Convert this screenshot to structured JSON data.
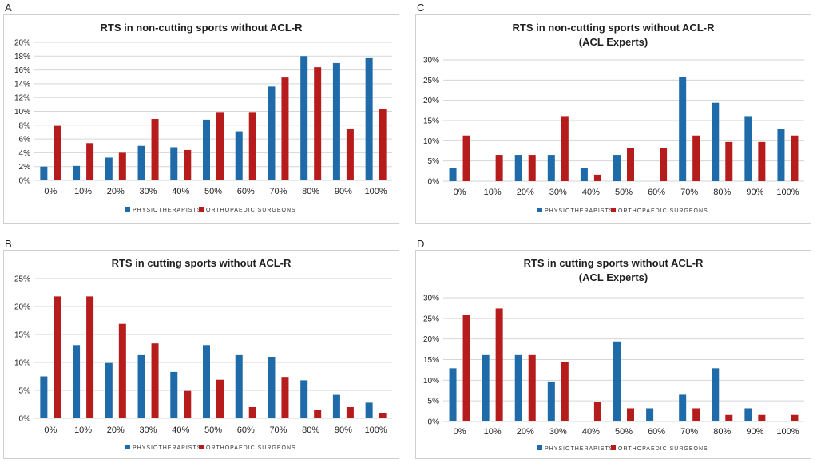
{
  "colors": {
    "physio": "#1f6aa8",
    "ortho": "#b71c1c",
    "grid": "#d6d6d6"
  },
  "chart_data": [
    {
      "letter": "A",
      "type": "bar",
      "title": [
        "RTS in non-cutting sports without ACL-R"
      ],
      "categories": [
        "0%",
        "10%",
        "20%",
        "30%",
        "40%",
        "50%",
        "60%",
        "70%",
        "80%",
        "90%",
        "100%"
      ],
      "ylim": [
        0,
        20
      ],
      "yticks": [
        0,
        2,
        4,
        6,
        8,
        10,
        12,
        14,
        16,
        18,
        20
      ],
      "ytick_labels": [
        "0%",
        "2%",
        "4%",
        "6%",
        "8%",
        "10%",
        "12%",
        "14%",
        "16%",
        "18%",
        "20%"
      ],
      "series": [
        {
          "name": "PHYSIOTHERAPISTS",
          "values": [
            2,
            2.1,
            3.3,
            5,
            4.8,
            8.8,
            7.1,
            13.6,
            18,
            17,
            17.7
          ]
        },
        {
          "name": "ORTHOPAEDIC SURGEONS",
          "values": [
            7.9,
            5.4,
            4,
            8.9,
            4.4,
            9.9,
            9.9,
            14.9,
            16.4,
            7.4,
            10.4
          ]
        }
      ],
      "legend": "bottom-center"
    },
    {
      "letter": "B",
      "type": "bar",
      "title": [
        "RTS in cutting sports without ACL-R"
      ],
      "categories": [
        "0%",
        "10%",
        "20%",
        "30%",
        "40%",
        "50%",
        "60%",
        "70%",
        "80%",
        "90%",
        "100%"
      ],
      "ylim": [
        0,
        25
      ],
      "yticks": [
        0,
        5,
        10,
        15,
        20,
        25
      ],
      "ytick_labels": [
        "0%",
        "5%",
        "10%",
        "15%",
        "20%",
        "25%"
      ],
      "series": [
        {
          "name": "PHYSIOTHERAPISTS",
          "values": [
            7.5,
            13.1,
            9.9,
            11.3,
            8.3,
            13.1,
            11.3,
            11,
            6.8,
            4.2,
            2.8
          ]
        },
        {
          "name": "ORTHOPAEDIC SURGEONS",
          "values": [
            21.8,
            21.8,
            16.9,
            13.4,
            4.9,
            6.9,
            2,
            7.4,
            1.5,
            2,
            1
          ]
        }
      ],
      "legend": "bottom-center"
    },
    {
      "letter": "C",
      "type": "bar",
      "title": [
        "RTS in non-cutting sports without ACL-R",
        "(ACL Experts)"
      ],
      "categories": [
        "0%",
        "10%",
        "20%",
        "30%",
        "40%",
        "50%",
        "60%",
        "70%",
        "80%",
        "90%",
        "100%"
      ],
      "ylim": [
        0,
        30
      ],
      "yticks": [
        0,
        5,
        10,
        15,
        20,
        25,
        30
      ],
      "ytick_labels": [
        "0%",
        "5%",
        "10%",
        "15%",
        "20%",
        "25%",
        "30%"
      ],
      "series": [
        {
          "name": "PHYSIOTHERAPISTS",
          "values": [
            3.2,
            0,
            6.5,
            6.5,
            3.2,
            6.5,
            0,
            25.8,
            19.4,
            16.1,
            12.9
          ]
        },
        {
          "name": "ORTHOPAEDIC SURGEONS",
          "values": [
            11.3,
            6.5,
            6.5,
            16.1,
            1.6,
            8.1,
            8.1,
            11.3,
            9.7,
            9.7,
            11.3
          ]
        }
      ],
      "legend": "bottom-center"
    },
    {
      "letter": "D",
      "type": "bar",
      "title": [
        "RTS in cutting sports without ACL-R",
        "(ACL Experts)"
      ],
      "categories": [
        "0%",
        "10%",
        "20%",
        "30%",
        "40%",
        "50%",
        "60%",
        "70%",
        "80%",
        "90%",
        "100%"
      ],
      "ylim": [
        0,
        30
      ],
      "yticks": [
        0,
        5,
        10,
        15,
        20,
        25,
        30
      ],
      "ytick_labels": [
        "0%",
        "5%",
        "10%",
        "15%",
        "20%",
        "25%",
        "30%"
      ],
      "series": [
        {
          "name": "PHYSIOTHERAPISTS",
          "values": [
            12.9,
            16.1,
            16.1,
            9.7,
            0,
            19.4,
            3.2,
            6.5,
            12.9,
            3.2,
            0
          ]
        },
        {
          "name": "ORTHOPAEDIC SURGEONS",
          "values": [
            25.8,
            27.4,
            16.1,
            14.5,
            4.8,
            3.2,
            0,
            3.2,
            1.6,
            1.6,
            1.6
          ]
        }
      ],
      "legend": "bottom-center"
    }
  ]
}
